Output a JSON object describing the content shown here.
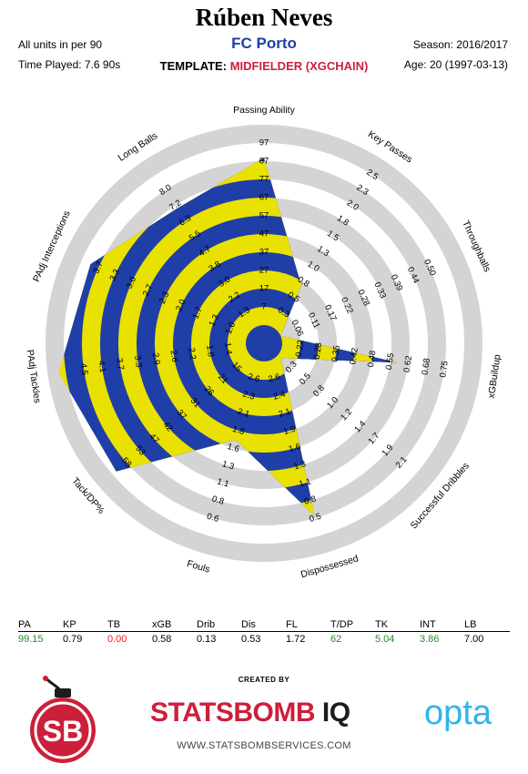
{
  "header": {
    "player": "Rúben Neves",
    "team": "FC Porto",
    "units": "All units in per 90",
    "time_played": "Time Played: 7.6 90s",
    "season": "Season: 2016/2017",
    "age": "Age: 20 (1997-03-13)",
    "template_label": "TEMPLATE:",
    "template_value": "MIDFIELDER (XGCHAIN)"
  },
  "colors": {
    "blue": "#1f3ea8",
    "yellow": "#e9e100",
    "ring_grey": "#d4d4d4",
    "red": "#cc1f3a",
    "green": "#2a8a2a"
  },
  "chart_data": {
    "type": "radar",
    "rings": 9,
    "metrics": [
      {
        "name": "Passing Ability",
        "value": 99.15,
        "ticks": [
          "7",
          "17",
          "27",
          "37",
          "47",
          "57",
          "67",
          "77",
          "87",
          "97"
        ]
      },
      {
        "name": "Key Passes",
        "value": 0.79,
        "ticks": [
          "0.3",
          "0.5",
          "0.8",
          "1.0",
          "1.3",
          "1.5",
          "1.8",
          "2.0",
          "2.3",
          "2.5"
        ]
      },
      {
        "name": "Throughballs",
        "value": 0.0,
        "ticks": [
          "0.06",
          "0.11",
          "0.17",
          "0.22",
          "0.28",
          "0.33",
          "0.39",
          "0.44",
          "0.50"
        ]
      },
      {
        "name": "xGBuildup",
        "value": 0.58,
        "ticks": [
          "0.22",
          "0.28",
          "0.35",
          "0.42",
          "0.48",
          "0.55",
          "0.62",
          "0.68",
          "0.75"
        ]
      },
      {
        "name": "Successful Dribbles",
        "value": 0.13,
        "ticks": [
          "0.3",
          "0.5",
          "0.8",
          "1.0",
          "1.2",
          "1.4",
          "1.7",
          "1.9",
          "2.1"
        ]
      },
      {
        "name": "Dispossessed",
        "value": 0.53,
        "ticks": [
          "2.6",
          "2.4",
          "2.1",
          "1.9",
          "1.6",
          "1.3",
          "1.1",
          "0.8",
          "0.5"
        ]
      },
      {
        "name": "Fouls",
        "value": 1.72,
        "ticks": [
          "2.6",
          "2.3",
          "2.1",
          "1.8",
          "1.6",
          "1.3",
          "1.1",
          "0.8",
          "0.6"
        ]
      },
      {
        "name": "Tack/DP%",
        "value": 62,
        "ticks": [
          "15",
          "21",
          "26",
          "31",
          "37",
          "42",
          "47",
          "53",
          "58"
        ]
      },
      {
        "name": "PAdj Tackles",
        "value": 5.04,
        "ticks": [
          "1.4",
          "1.8",
          "2.2",
          "2.6",
          "2.9",
          "3.3",
          "3.7",
          "4.1",
          "4.5"
        ]
      },
      {
        "name": "PAdj Interceptions",
        "value": 3.86,
        "ticks": [
          "1.0",
          "1.3",
          "1.7",
          "2.0",
          "2.3",
          "2.7",
          "3.0",
          "3.3",
          "3.7"
        ]
      },
      {
        "name": "Long Balls",
        "value": 7.0,
        "ticks": [
          "1.3",
          "2.2",
          "3.0",
          "3.8",
          "4.7",
          "5.5",
          "6.3",
          "7.2",
          "8.0"
        ]
      }
    ]
  },
  "stats_table": {
    "headers": [
      "PA",
      "KP",
      "TB",
      "xGB",
      "Drib",
      "Dis",
      "FL",
      "T/DP",
      "TK",
      "INT",
      "LB"
    ],
    "values": [
      "99.15",
      "0.79",
      "0.00",
      "0.58",
      "0.13",
      "0.53",
      "1.72",
      "62",
      "5.04",
      "3.86",
      "7.00"
    ],
    "value_colors": [
      "#2a8a2a",
      "#000000",
      "#ff1a1a",
      "#000000",
      "#000000",
      "#000000",
      "#000000",
      "#2a8a2a",
      "#2a8a2a",
      "#2a8a2a",
      "#000000"
    ]
  },
  "footer": {
    "created_by": "CREATED BY",
    "brand": "STATSBOMB",
    "brand_suffix": "IQ",
    "website": "WWW.STATSBOMBSERVICES.COM",
    "opta": "opta",
    "sb_mark": "SB"
  }
}
